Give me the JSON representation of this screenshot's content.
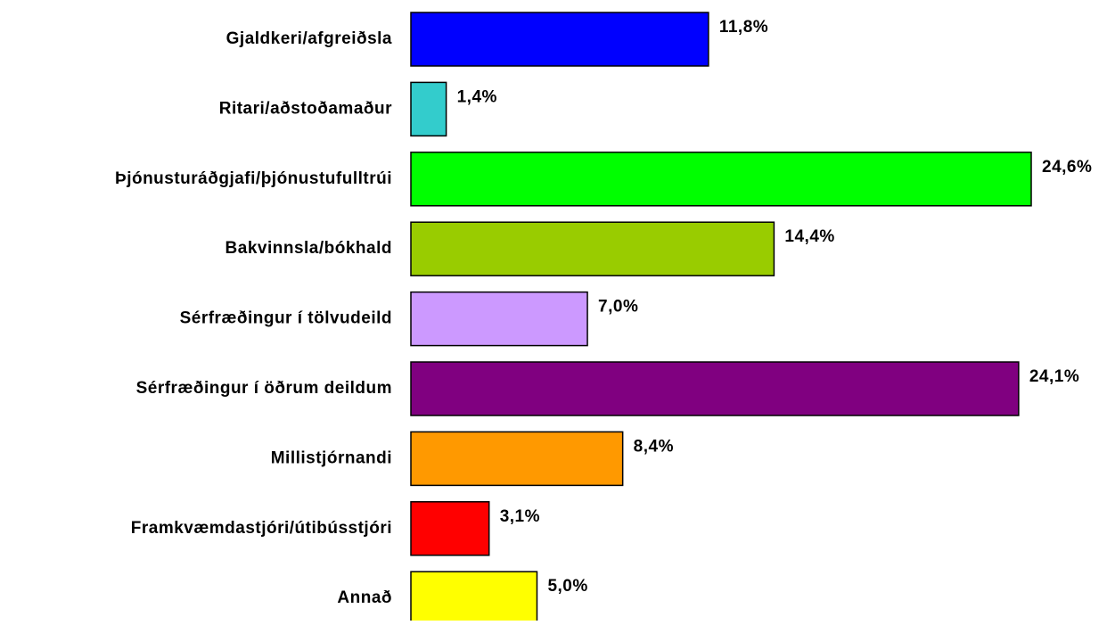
{
  "chart_data": {
    "type": "bar",
    "orientation": "horizontal",
    "categories": [
      "Gjaldkeri/afgreiðsla",
      "Ritari/aðstoðamaður",
      "Þjónusturáðgjafi/þjónustufulltrúi",
      "Bakvinnsla/bókhald",
      "Sérfræðingur í tölvudeild",
      "Sérfræðingur í öðrum deildum",
      "Millistjórnandi",
      "Framkvæmdastjóri/útibússtjóri",
      "Annað"
    ],
    "values": [
      11.8,
      1.4,
      24.6,
      14.4,
      7.0,
      24.1,
      8.4,
      3.1,
      5.0
    ],
    "value_labels": [
      "11,8%",
      "1,4%",
      "24,6%",
      "14,4%",
      "7,0%",
      "24,1%",
      "8,4%",
      "3,1%",
      "5,0%"
    ],
    "colors": [
      "#0000ff",
      "#33cccc",
      "#00ff00",
      "#99cc00",
      "#cc99ff",
      "#800080",
      "#ff9900",
      "#ff0000",
      "#ffff00"
    ]
  }
}
